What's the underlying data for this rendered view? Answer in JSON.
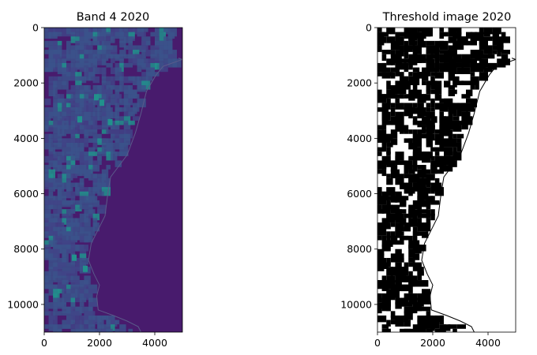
{
  "chart_data": [
    {
      "type": "image",
      "title": "Band 4 2020",
      "colormap": "viridis",
      "xlim": [
        0,
        5000
      ],
      "ylim": [
        11000,
        0
      ],
      "xticks": [
        0,
        2000,
        4000
      ],
      "yticks": [
        0,
        2000,
        4000,
        6000,
        8000,
        10000
      ],
      "x_tick_labels": [
        "0",
        "2000",
        "4000"
      ],
      "y_tick_labels": [
        "0",
        "2000",
        "4000",
        "6000",
        "8000",
        "10000"
      ],
      "colors": {
        "background": "#481b6d",
        "bright": "#21918c",
        "mid": "#3b528b"
      },
      "boundary_x": [
        4860,
        5000,
        4300,
        4050,
        3700,
        3500,
        3300,
        3000,
        2700,
        2400,
        2300,
        2200,
        2000,
        1700,
        1600,
        1800,
        2000,
        1900,
        1950,
        2500,
        3000,
        3400,
        3500
      ],
      "boundary_y": [
        1100,
        1150,
        1400,
        1700,
        2300,
        3100,
        3800,
        4600,
        5000,
        5400,
        6000,
        6800,
        7200,
        7800,
        8400,
        8900,
        9300,
        9700,
        10200,
        10400,
        10600,
        10800,
        11000
      ]
    },
    {
      "type": "image",
      "title": "Threshold image 2020",
      "colormap": "binary",
      "xlim": [
        0,
        5000
      ],
      "ylim": [
        11000,
        0
      ],
      "xticks": [
        0,
        2000,
        4000
      ],
      "yticks": [
        0,
        2000,
        4000,
        6000,
        8000,
        10000
      ],
      "x_tick_labels": [
        "0",
        "2000",
        "4000"
      ],
      "y_tick_labels": [
        "0",
        "2000",
        "4000",
        "6000",
        "8000",
        "10000"
      ],
      "colors": {
        "background": "#ffffff",
        "foreground": "#000000"
      },
      "boundary_x": [
        4860,
        5000,
        4300,
        4050,
        3700,
        3500,
        3300,
        3000,
        2700,
        2400,
        2300,
        2200,
        2000,
        1700,
        1600,
        1800,
        2000,
        1900,
        1950,
        2500,
        3000,
        3400,
        3500
      ],
      "boundary_y": [
        1100,
        1150,
        1400,
        1700,
        2300,
        3100,
        3800,
        4600,
        5000,
        5400,
        6000,
        6800,
        7200,
        7800,
        8400,
        8900,
        9300,
        9700,
        10200,
        10400,
        10600,
        10800,
        11000
      ]
    }
  ]
}
